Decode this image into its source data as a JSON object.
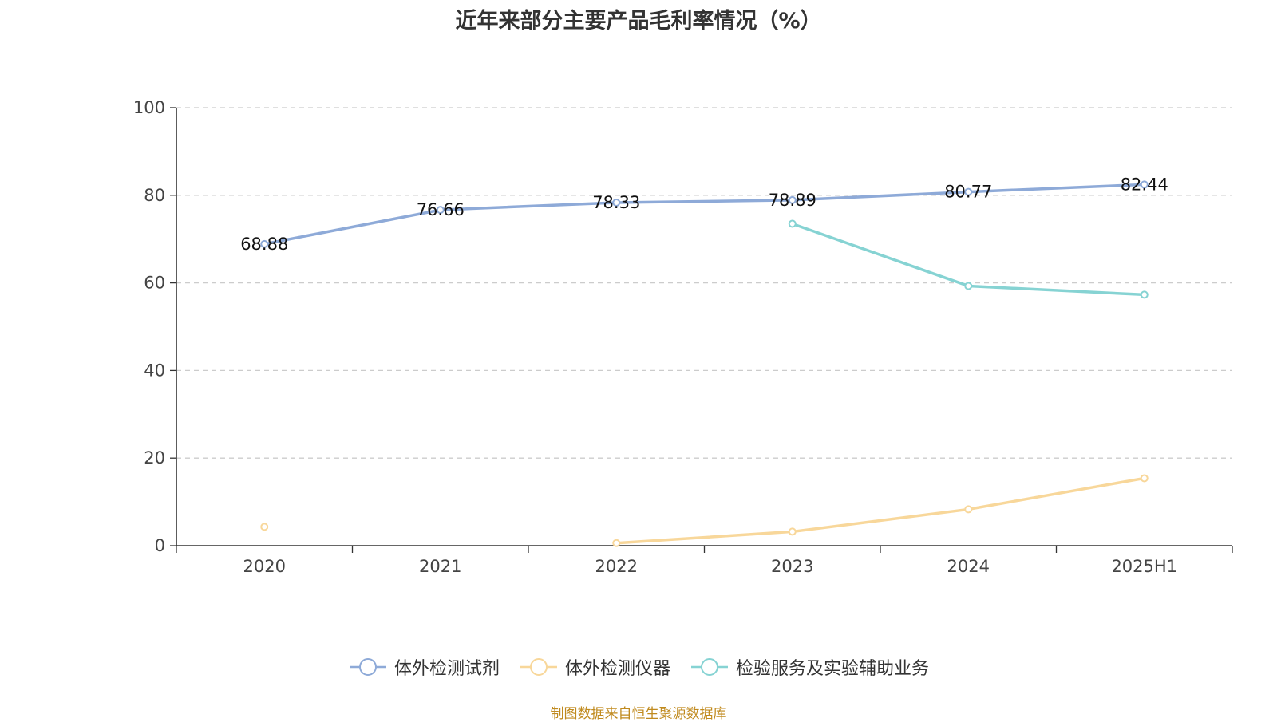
{
  "chart_data": {
    "type": "line",
    "title": "近年来部分主要产品毛利率情况（%）",
    "categories": [
      "2020",
      "2021",
      "2022",
      "2023",
      "2024",
      "2025H1"
    ],
    "ylim": [
      0,
      100
    ],
    "yticks": [
      "0",
      "20",
      "40",
      "60",
      "80",
      "100"
    ],
    "grid": true,
    "legend_position": "bottom",
    "series": [
      {
        "name": "体外检测试剂",
        "color": "#8eaad8",
        "values": [
          68.88,
          76.66,
          78.33,
          78.89,
          80.77,
          82.44
        ],
        "labels": [
          "68.88",
          "76.66",
          "78.33",
          "78.89",
          "80.77",
          "82.44"
        ]
      },
      {
        "name": "体外检测仪器",
        "color": "#f8d79a",
        "values": [
          4.3,
          null,
          0.6,
          3.2,
          8.3,
          15.4
        ]
      },
      {
        "name": "检验服务及实验辅助业务",
        "color": "#86d3d3",
        "values": [
          null,
          null,
          null,
          73.5,
          59.3,
          57.3
        ]
      }
    ]
  },
  "source": "制图数据来自恒生聚源数据库"
}
